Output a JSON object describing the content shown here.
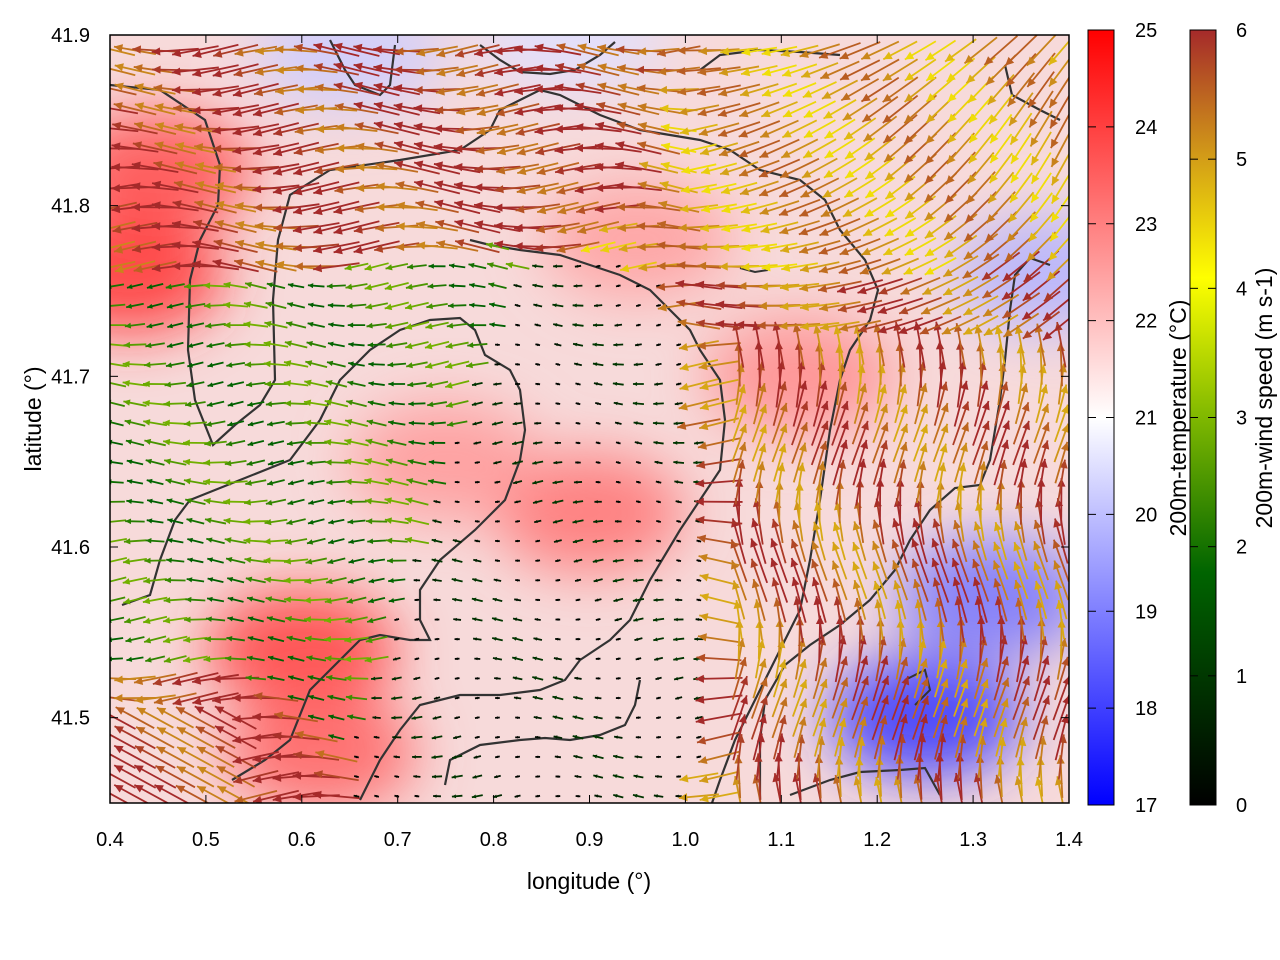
{
  "chart_data": {
    "type": "heatmap",
    "xlabel": "longitude (°)",
    "ylabel": "latitude (°)",
    "xlim": [
      0.4,
      1.4
    ],
    "ylim": [
      41.45,
      41.9
    ],
    "x_ticks": [
      "0.4",
      "0.5",
      "0.6",
      "0.7",
      "0.8",
      "0.9",
      "1.0",
      "1.1",
      "1.2",
      "1.3",
      "1.4"
    ],
    "y_ticks": [
      "41.5",
      "41.6",
      "41.7",
      "41.8",
      "41.9"
    ],
    "grid": false,
    "temperature_colorbar": {
      "label": "200m-temperature (°C)",
      "range": [
        17,
        25
      ],
      "ticks": [
        "17",
        "18",
        "19",
        "20",
        "21",
        "22",
        "23",
        "24",
        "25"
      ],
      "colors": [
        "#0000ff",
        "#ffffff",
        "#ff0000"
      ]
    },
    "wind_colorbar": {
      "label": "200m-wind speed (m s-1)",
      "range": [
        0,
        6
      ],
      "ticks": [
        "0",
        "1",
        "2",
        "3",
        "4",
        "5",
        "6"
      ],
      "colors": [
        "#000000",
        "#006400",
        "#7fb800",
        "#ffff00",
        "#d4a017",
        "#a52a2a"
      ]
    },
    "temperature_anomalies": [
      {
        "lon": 0.45,
        "lat": 41.82,
        "value": 23.8
      },
      {
        "lon": 0.42,
        "lat": 41.76,
        "value": 24.2
      },
      {
        "lon": 0.6,
        "lat": 41.54,
        "value": 24.0
      },
      {
        "lon": 0.62,
        "lat": 41.48,
        "value": 23.5
      },
      {
        "lon": 0.9,
        "lat": 41.62,
        "value": 23.2
      },
      {
        "lon": 0.95,
        "lat": 41.78,
        "value": 22.5
      },
      {
        "lon": 0.75,
        "lat": 41.65,
        "value": 22.6
      },
      {
        "lon": 1.12,
        "lat": 41.7,
        "value": 22.8
      },
      {
        "lon": 1.25,
        "lat": 41.5,
        "value": 17.8
      },
      {
        "lon": 1.32,
        "lat": 41.57,
        "value": 18.8
      },
      {
        "lon": 1.38,
        "lat": 41.76,
        "value": 19.8
      },
      {
        "lon": 0.88,
        "lat": 41.9,
        "value": 20.5
      },
      {
        "lon": 0.65,
        "lat": 41.89,
        "value": 20.2
      }
    ],
    "wind_regions": [
      {
        "name": "northwest strong westward flow",
        "lon": [
          0.4,
          0.7
        ],
        "lat": [
          41.78,
          41.86
        ],
        "speed": 5.8
      },
      {
        "name": "north-central strong flow",
        "lon": [
          0.7,
          0.95
        ],
        "lat": [
          41.83,
          41.88
        ],
        "speed": 5.9
      },
      {
        "name": "northeast curving flow",
        "lon": [
          1.0,
          1.4
        ],
        "lat": [
          41.8,
          41.9
        ],
        "speed": 5.0
      },
      {
        "name": "western moderate flow",
        "lon": [
          0.4,
          0.75
        ],
        "lat": [
          41.55,
          41.75
        ],
        "speed": 2.3
      },
      {
        "name": "central calm zone",
        "lon": [
          0.72,
          1.0
        ],
        "lat": [
          41.48,
          41.68
        ],
        "speed": 0.4
      },
      {
        "name": "eastern northward flow",
        "lon": [
          1.05,
          1.4
        ],
        "lat": [
          41.45,
          41.72
        ],
        "speed": 5.5
      },
      {
        "name": "southwest strong flow",
        "lon": [
          0.4,
          0.55
        ],
        "lat": [
          41.45,
          41.5
        ],
        "speed": 5.8
      }
    ]
  }
}
